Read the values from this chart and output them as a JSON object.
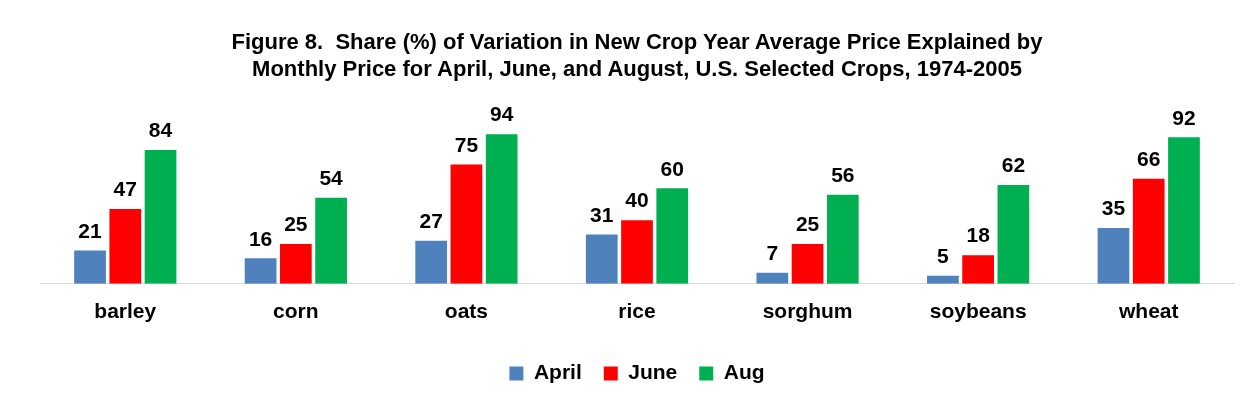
{
  "chart_data": {
    "type": "bar",
    "title": "Figure 8.  Share (%) of Variation in New Crop Year Average Price Explained by\nMonthly Price for April, June, and August, U.S. Selected Crops, 1974-2005",
    "categories": [
      "barley",
      "corn",
      "oats",
      "rice",
      "sorghum",
      "soybeans",
      "wheat"
    ],
    "series": [
      {
        "name": "April",
        "color": "#4f81bd",
        "values": [
          21,
          16,
          27,
          31,
          7,
          5,
          35
        ]
      },
      {
        "name": "June",
        "color": "#ff0000",
        "values": [
          47,
          25,
          75,
          40,
          25,
          18,
          66
        ]
      },
      {
        "name": "Aug",
        "color": "#00b050",
        "values": [
          84,
          54,
          94,
          60,
          56,
          62,
          92
        ]
      }
    ],
    "data_labels": true,
    "legend": "bottom",
    "grid": false
  }
}
